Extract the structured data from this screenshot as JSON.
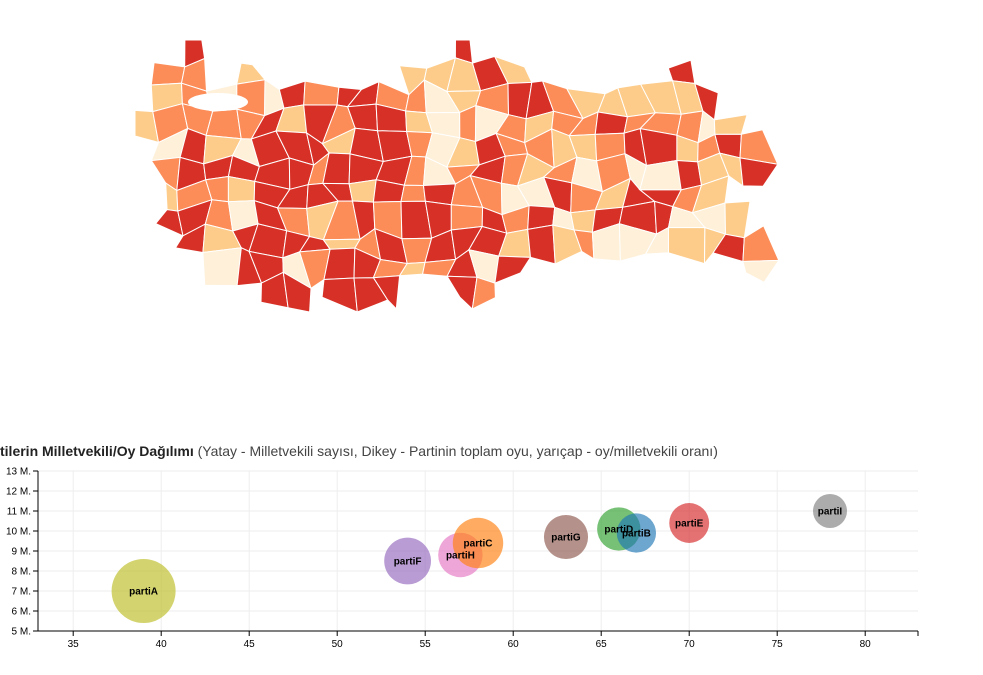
{
  "map": {
    "colors": [
      "#d73027",
      "#fc8d59",
      "#fdcc8a",
      "#fef0d9"
    ]
  },
  "chart_title": {
    "bold": "tilerin Milletvekili/Oy Dağılımı",
    "sub": " (Yatay - Milletvekili sayısı, Dikey - Partinin toplam oyu, yarıçap - oy/milletvekili oranı)"
  },
  "chart_data": {
    "type": "scatter",
    "title": "tilerin Milletvekili/Oy Dağılımı (Yatay - Milletvekili sayısı, Dikey - Partinin toplam oyu, yarıçap - oy/milletvekili oranı)",
    "xlim": [
      33,
      83
    ],
    "ylim": [
      5,
      13
    ],
    "x_ticks": [
      "35",
      "40",
      "45",
      "50",
      "55",
      "60",
      "65",
      "70",
      "75",
      "80"
    ],
    "y_ticks": [
      "5 M.",
      "6 M.",
      "7 M.",
      "8 M.",
      "9 M.",
      "10 M.",
      "11 M.",
      "12 M.",
      "13 M."
    ],
    "grid": true,
    "points": [
      {
        "name": "partiA",
        "x": 39,
        "y": 7.0,
        "color": "#bcbd22"
      },
      {
        "name": "partiF",
        "x": 54,
        "y": 8.5,
        "color": "#9467bd"
      },
      {
        "name": "partiH",
        "x": 57,
        "y": 8.8,
        "color": "#e377c2"
      },
      {
        "name": "partiC",
        "x": 58,
        "y": 9.4,
        "color": "#ff7f0e"
      },
      {
        "name": "partiG",
        "x": 63,
        "y": 9.7,
        "color": "#8c564b"
      },
      {
        "name": "partiD",
        "x": 66,
        "y": 10.1,
        "color": "#2ca02c"
      },
      {
        "name": "partiB",
        "x": 67,
        "y": 9.9,
        "color": "#1f77b4"
      },
      {
        "name": "partiE",
        "x": 70,
        "y": 10.4,
        "color": "#d62728"
      },
      {
        "name": "partiI",
        "x": 78,
        "y": 11.0,
        "color": "#7f7f7f"
      }
    ]
  }
}
